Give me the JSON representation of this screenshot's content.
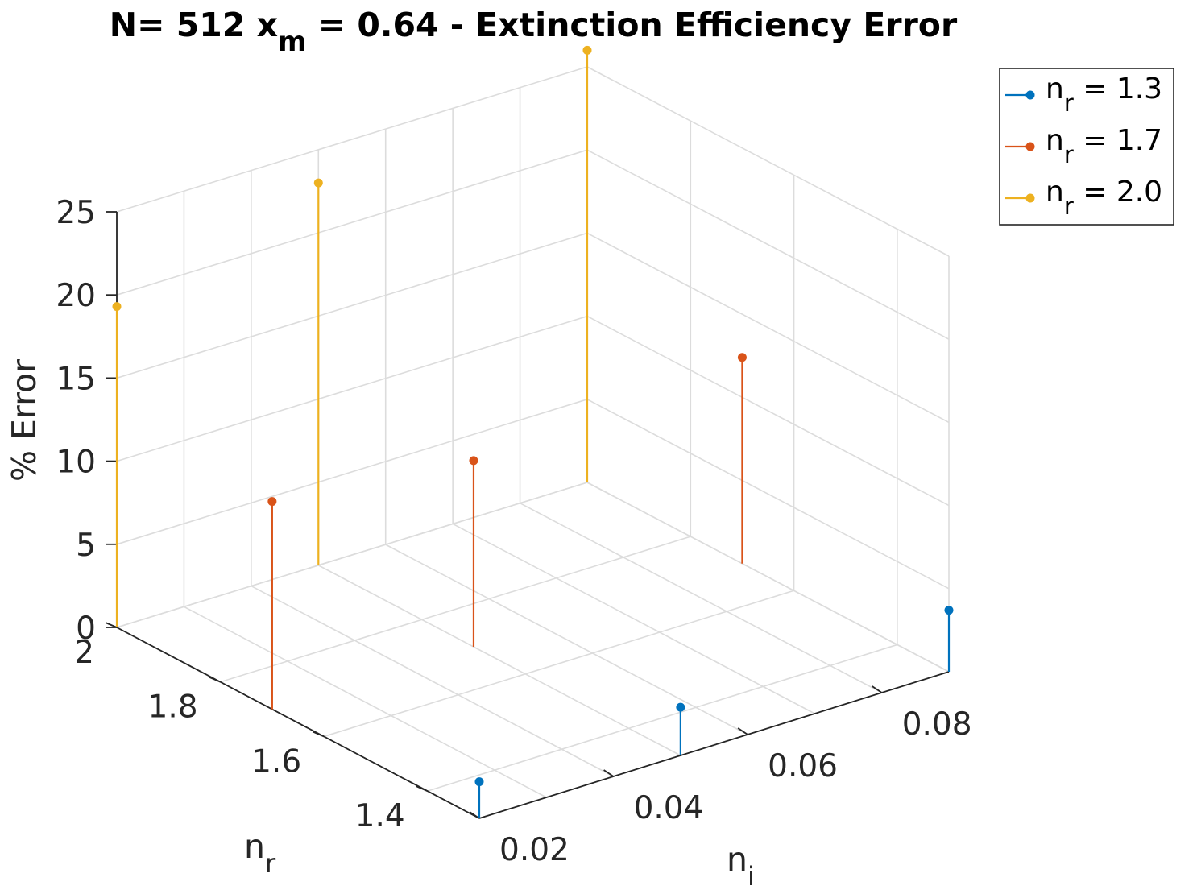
{
  "chart_data": {
    "type": "stem3",
    "title": {
      "prefix": "N= 512 x",
      "subscript": "m",
      "suffix": " = 0.64 - Extinction Efficiency Error"
    },
    "xlabel": {
      "base": "n",
      "sub": "i"
    },
    "ylabel": {
      "base": "n",
      "sub": "r"
    },
    "zlabel": "% Error",
    "xlim": [
      0.02,
      0.09
    ],
    "ylim": [
      1.3,
      2.0
    ],
    "zlim": [
      0,
      25
    ],
    "xticks": [
      {
        "value": 0.02,
        "label": "0.02"
      },
      {
        "value": 0.04,
        "label": "0.04"
      },
      {
        "value": 0.06,
        "label": "0.06"
      },
      {
        "value": 0.08,
        "label": "0.08"
      }
    ],
    "yticks": [
      {
        "value": 1.4,
        "label": "1.4"
      },
      {
        "value": 1.6,
        "label": "1.6"
      },
      {
        "value": 1.8,
        "label": "1.8"
      },
      {
        "value": 2.0,
        "label": "2"
      }
    ],
    "zticks": [
      {
        "value": 0,
        "label": "0"
      },
      {
        "value": 5,
        "label": "5"
      },
      {
        "value": 10,
        "label": "10"
      },
      {
        "value": 15,
        "label": "15"
      },
      {
        "value": 20,
        "label": "20"
      },
      {
        "value": 25,
        "label": "25"
      }
    ],
    "grid": true,
    "legend_position": "top-right",
    "series": [
      {
        "label_base": "n",
        "label_sub": "r",
        "label_rest": " = 1.3",
        "color": "#0072bd",
        "points": [
          {
            "x": 0.02,
            "y": 1.3,
            "z": 2.2
          },
          {
            "x": 0.05,
            "y": 1.3,
            "z": 2.9
          },
          {
            "x": 0.09,
            "y": 1.3,
            "z": 3.7
          }
        ]
      },
      {
        "label_base": "n",
        "label_sub": "r",
        "label_rest": " = 1.7",
        "color": "#d95319",
        "points": [
          {
            "x": 0.02,
            "y": 1.7,
            "z": 12.5
          },
          {
            "x": 0.05,
            "y": 1.7,
            "z": 11.2
          },
          {
            "x": 0.09,
            "y": 1.7,
            "z": 12.4
          }
        ]
      },
      {
        "label_base": "n",
        "label_sub": "r",
        "label_rest": " = 2.0",
        "color": "#edb120",
        "points": [
          {
            "x": 0.02,
            "y": 2.0,
            "z": 19.3
          },
          {
            "x": 0.05,
            "y": 2.0,
            "z": 23.0
          },
          {
            "x": 0.09,
            "y": 2.0,
            "z": 26.0
          }
        ]
      }
    ]
  }
}
